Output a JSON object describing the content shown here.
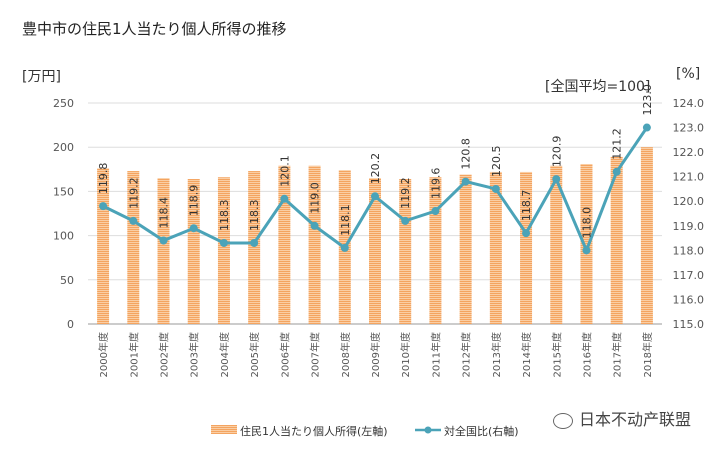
{
  "chart_data": {
    "type": "bar+line",
    "title": "豊中市の住民1人当たり個人所得の推移",
    "ylabel_left": "[万円]",
    "ylabel_right": "[%]",
    "annotation": "[全国平均=100]",
    "ylim_left": [
      0,
      250
    ],
    "yticks_left": [
      0,
      50,
      100,
      150,
      200,
      250
    ],
    "ylim_right": [
      115.0,
      124.0
    ],
    "yticks_right": [
      "115.0",
      "116.0",
      "117.0",
      "118.0",
      "119.0",
      "120.0",
      "121.0",
      "122.0",
      "123.0",
      "124.0"
    ],
    "grid": true,
    "legend_position": "bottom",
    "categories": [
      "2000年度",
      "2001年度",
      "2002年度",
      "2003年度",
      "2004年度",
      "2005年度",
      "2006年度",
      "2007年度",
      "2008年度",
      "2009年度",
      "2010年度",
      "2011年度",
      "2012年度",
      "2013年度",
      "2014年度",
      "2015年度",
      "2016年度",
      "2017年度",
      "2018年度"
    ],
    "series": [
      {
        "name": "住民1人当たり個人所得(左軸)",
        "axis": "left",
        "kind": "bar",
        "color": "#F4A460",
        "values": [
          176,
          173,
          165,
          164,
          166,
          173,
          179,
          179,
          174,
          165,
          164,
          166,
          169,
          172,
          172,
          179,
          181,
          189,
          200
        ]
      },
      {
        "name": "対全国比(右軸)",
        "axis": "right",
        "kind": "line",
        "color": "#4BA3B8",
        "values": [
          119.8,
          119.2,
          118.4,
          118.9,
          118.3,
          118.3,
          120.1,
          119.0,
          118.1,
          120.2,
          119.2,
          119.6,
          120.8,
          120.5,
          118.7,
          120.9,
          118.0,
          121.2,
          123.0
        ],
        "labels": [
          "119.8",
          "119.2",
          "118.4",
          "118.9",
          "118.3",
          "118.3",
          "120.1",
          "119.0",
          "118.1",
          "120.2",
          "119.2",
          "119.6",
          "120.8",
          "120.5",
          "118.7",
          "120.9",
          "118.0",
          "121.2",
          "123.0"
        ]
      }
    ]
  },
  "watermark": "日本不动产联盟"
}
